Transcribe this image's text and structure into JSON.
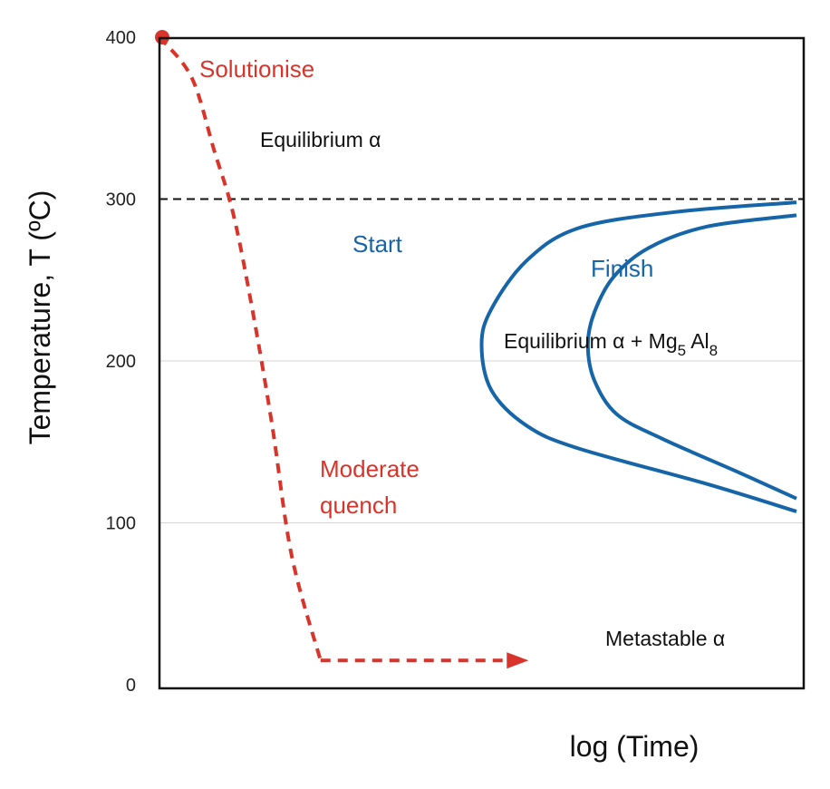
{
  "chart_data": {
    "type": "line",
    "title": "",
    "xlabel": "log (Time)",
    "ylabel": "Temperature, T  (ºC)",
    "ylim": [
      0,
      400
    ],
    "yticks": [
      "0",
      "100",
      "200",
      "300",
      "400"
    ],
    "grid": "horizontal",
    "solvus_temperature": 300,
    "series": [
      {
        "name": "Start",
        "color": "#1565a8",
        "x": [
          10,
          8,
          6.5,
          5.7,
          5.15,
          5.0,
          5.15,
          5.7,
          6.5,
          8.5,
          10
        ],
        "y": [
          298,
          292,
          282,
          262,
          232,
          210,
          182,
          160,
          146,
          124,
          107
        ]
      },
      {
        "name": "Finish",
        "color": "#1565a8",
        "x": [
          10,
          8.5,
          7.6,
          7.05,
          6.75,
          6.65,
          6.75,
          7.1,
          7.8,
          9,
          10
        ],
        "y": [
          290,
          283,
          270,
          252,
          230,
          210,
          188,
          167,
          152,
          131,
          115
        ]
      },
      {
        "name": "Moderate quench",
        "color": "#d9342b",
        "style": "dashed",
        "x": [
          0,
          0.5,
          0.85,
          1.15,
          1.45,
          1.75,
          2.05,
          2.5,
          3.5,
          4.4,
          5.0,
          5.7
        ],
        "y": [
          400,
          375,
          330,
          290,
          230,
          160,
          80,
          15,
          15,
          15,
          15,
          15
        ]
      }
    ],
    "start_marker": {
      "label": "Solutionise",
      "y": 400
    },
    "annotations": {
      "solutionise": "Solutionise",
      "quench_line1": "Moderate",
      "quench_line2": "quench",
      "start": "Start",
      "finish": "Finish",
      "equilibrium_alpha": "Equilibrium α",
      "equilibrium_mix_prefix": "Equilibrium α + Mg",
      "mg_sub": "5",
      "al_text": " Al",
      "al_sub": "8",
      "metastable": "Metastable α"
    },
    "colors": {
      "quench": "#d9342b",
      "curves": "#1565a8",
      "axis": "#111111",
      "grid": "#d4d4d4"
    }
  }
}
